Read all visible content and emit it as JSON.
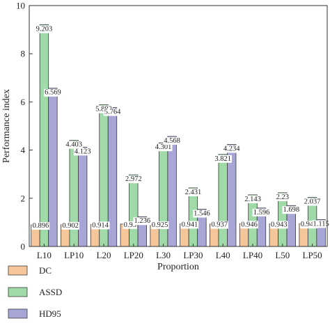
{
  "chart_data": {
    "type": "bar",
    "title": "",
    "xlabel": "Proportion",
    "ylabel": "Performance index",
    "ylim": [
      0,
      10
    ],
    "yticks": [
      0,
      2,
      4,
      6,
      8,
      10
    ],
    "grid": false,
    "legend_position": "bottom-left",
    "categories": [
      "L10",
      "LP10",
      "L20",
      "LP20",
      "L30",
      "LP30",
      "L40",
      "LP40",
      "L50",
      "LP50"
    ],
    "series": [
      {
        "name": "DC",
        "color": "#f5c69a",
        "values": [
          0.896,
          0.902,
          0.914,
          0.93,
          0.925,
          0.941,
          0.937,
          0.946,
          0.943,
          0.948
        ],
        "labels": [
          "0.896",
          "0.902",
          "0.914",
          "0.93",
          "0.925",
          "0.941",
          "0.937",
          "0.946",
          "0.943",
          "0.948"
        ]
      },
      {
        "name": "ASSD",
        "color": "#9fdaa8",
        "values": [
          9.203,
          4.403,
          5.882,
          2.972,
          4.301,
          2.431,
          3.821,
          2.143,
          2.23,
          2.037
        ],
        "labels": [
          "9.203",
          "4.403",
          "5.882",
          "2.972",
          "4.301",
          "2.431",
          "3.821",
          "2.143",
          "2.23",
          "2.037"
        ]
      },
      {
        "name": "HD95",
        "color": "#a7a6d6",
        "values": [
          6.569,
          4.123,
          5.764,
          1.236,
          4.568,
          1.546,
          4.234,
          1.596,
          1.698,
          1.115
        ],
        "labels": [
          "6.569",
          "4.123",
          "5.764",
          "1.236",
          "4.568",
          "1.546",
          "4.234",
          "1.596",
          "1.698",
          "1.115"
        ]
      }
    ]
  }
}
